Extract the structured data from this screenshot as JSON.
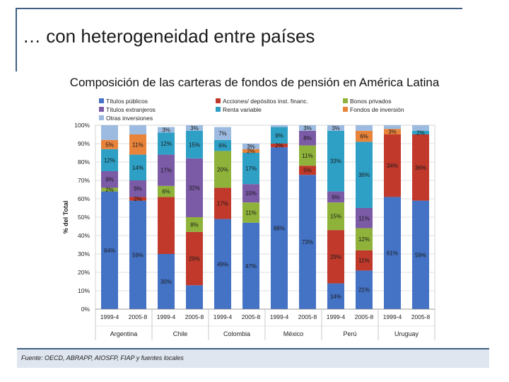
{
  "slide": {
    "title": "… con heterogeneidad entre países",
    "footer": "Fuente: OECD, ABRAPP, AIOSFP, FIAP y fuentes locales"
  },
  "chart_data": {
    "type": "bar",
    "stacked": true,
    "title": "Composición de las carteras de fondos de pensión en América Latina",
    "ylabel": "% del Total",
    "ylim": [
      0,
      100
    ],
    "yticks": [
      "0%",
      "10%",
      "20%",
      "30%",
      "40%",
      "50%",
      "60%",
      "70%",
      "80%",
      "90%",
      "100%"
    ],
    "legend_position": "top",
    "categories": [
      "1999-4",
      "2005-8",
      "1999-4",
      "2005-8",
      "1999-4",
      "2005-8",
      "1999-4",
      "2005-8",
      "1999-4",
      "2005-8",
      "1999-4",
      "2005-8"
    ],
    "groups": [
      {
        "label": "Argentina",
        "span": 2
      },
      {
        "label": "Chile",
        "span": 2
      },
      {
        "label": "Colombia",
        "span": 2
      },
      {
        "label": "México",
        "span": 2
      },
      {
        "label": "Perú",
        "span": 2
      },
      {
        "label": "Uruguay",
        "span": 2
      }
    ],
    "series": [
      {
        "name": "Títulos públicos",
        "color": "#4472c4",
        "values": [
          64,
          59,
          30,
          13,
          49,
          47,
          88,
          73,
          14,
          21,
          61,
          59
        ],
        "labels": [
          "64%",
          "59%",
          "30%",
          "",
          "49%",
          "47%",
          "88%",
          "73%",
          "14%",
          "21%",
          "61%",
          "59%"
        ]
      },
      {
        "name": "Acciones/ depósitos inst. financ.",
        "color": "#c0392b",
        "values": [
          0,
          2,
          31,
          29,
          17,
          0,
          2,
          5,
          29,
          11,
          34,
          36
        ],
        "labels": [
          "",
          "2%",
          "",
          "29%",
          "17%",
          "",
          "2%",
          "5%",
          "29%",
          "11%",
          "34%",
          "36%"
        ]
      },
      {
        "name": "Bonos privados",
        "color": "#8fb33a",
        "values": [
          2,
          0,
          6,
          8,
          20,
          11,
          0,
          11,
          15,
          12,
          0,
          0
        ],
        "labels": [
          "2%",
          "",
          "6%",
          "8%",
          "20%",
          "11%",
          "",
          "11%",
          "15%",
          "12%",
          "",
          ""
        ]
      },
      {
        "name": "Títulos extranjeros",
        "color": "#7b5aa6",
        "values": [
          9,
          9,
          17,
          32,
          0,
          10,
          0,
          8,
          6,
          11,
          0,
          0
        ],
        "labels": [
          "9%",
          "9%",
          "17%",
          "32%",
          "",
          "10%",
          "",
          "8%",
          "6%",
          "11%",
          "",
          ""
        ]
      },
      {
        "name": "Renta variable",
        "color": "#2ea0c6",
        "values": [
          12,
          14,
          12,
          15,
          6,
          17,
          9,
          0,
          33,
          36,
          0,
          2
        ],
        "labels": [
          "12%",
          "14%",
          "12%",
          "15%",
          "6%",
          "17%",
          "9%",
          "",
          "33%",
          "36%",
          "",
          "2%"
        ]
      },
      {
        "name": "Fondos de inversión",
        "color": "#e8833a",
        "values": [
          5,
          11,
          0,
          0,
          0,
          2,
          0,
          0,
          0,
          6,
          3,
          0
        ],
        "labels": [
          "5%",
          "11%",
          "",
          "",
          "",
          "2%",
          "",
          "",
          "",
          "6%",
          "3%",
          ""
        ]
      },
      {
        "name": "Otras inversiones",
        "color": "#9dbbe0",
        "values": [
          8,
          5,
          3,
          3,
          7,
          3,
          1,
          3,
          3,
          3,
          2,
          3
        ],
        "labels": [
          "",
          "",
          "3%",
          "3%",
          "7%",
          "3%",
          "",
          "3%",
          "3%",
          "",
          "",
          ""
        ]
      }
    ]
  }
}
